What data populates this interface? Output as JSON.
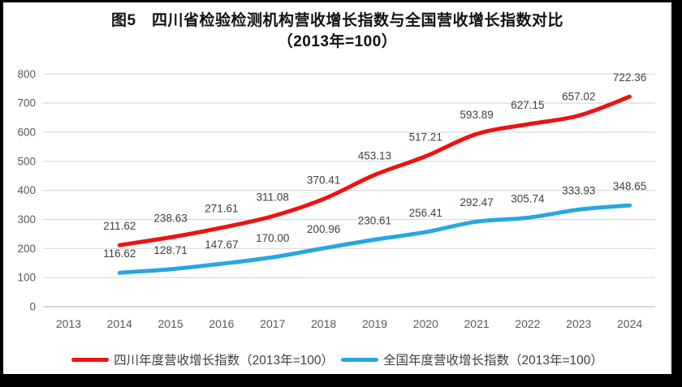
{
  "frame": {
    "border_color": "#000000",
    "background": "#ffffff"
  },
  "title": {
    "line1": "图5　四川省检验检测机构营收增长指数与全国营收增长指数对比",
    "line2": "（2013年=100）"
  },
  "chart_data": {
    "type": "line",
    "categories": [
      "2013",
      "2014",
      "2015",
      "2016",
      "2017",
      "2018",
      "2019",
      "2020",
      "2021",
      "2022",
      "2023",
      "2024"
    ],
    "series": [
      {
        "name": "四川年度营收增长指数（2013年=100）",
        "color": "#ee1212",
        "values": [
          null,
          211.62,
          238.63,
          271.61,
          311.08,
          370.41,
          453.13,
          517.21,
          593.89,
          627.15,
          657.02,
          722.36
        ],
        "value_labels": [
          null,
          "211.62",
          "238.63",
          "271.61",
          "311.08",
          "370.41",
          "453.13",
          "517.21",
          "593.89",
          "627.15",
          "657.02",
          "722.36"
        ]
      },
      {
        "name": "全国年度营收增长指数（2013年=100）",
        "color": "#27a7e0",
        "values": [
          null,
          116.62,
          128.71,
          147.67,
          170.0,
          200.96,
          230.61,
          256.41,
          292.47,
          305.74,
          333.93,
          348.65
        ],
        "value_labels": [
          null,
          "116.62",
          "128.71",
          "147.67",
          "170.00",
          "200.96",
          "230.61",
          "256.41",
          "292.47",
          "305.74",
          "333.93",
          "348.65"
        ]
      }
    ],
    "ylim": [
      0,
      800
    ],
    "ytick_labels": [
      "0",
      "100",
      "200",
      "300",
      "400",
      "500",
      "600",
      "700",
      "800"
    ],
    "grid": true,
    "legend_position": "bottom",
    "data_labels": true,
    "grid_color": "#d9d9d9",
    "axis_line_color": "#c0c0c0",
    "tick_color": "#595959",
    "label_color": "#3f3f3f"
  }
}
